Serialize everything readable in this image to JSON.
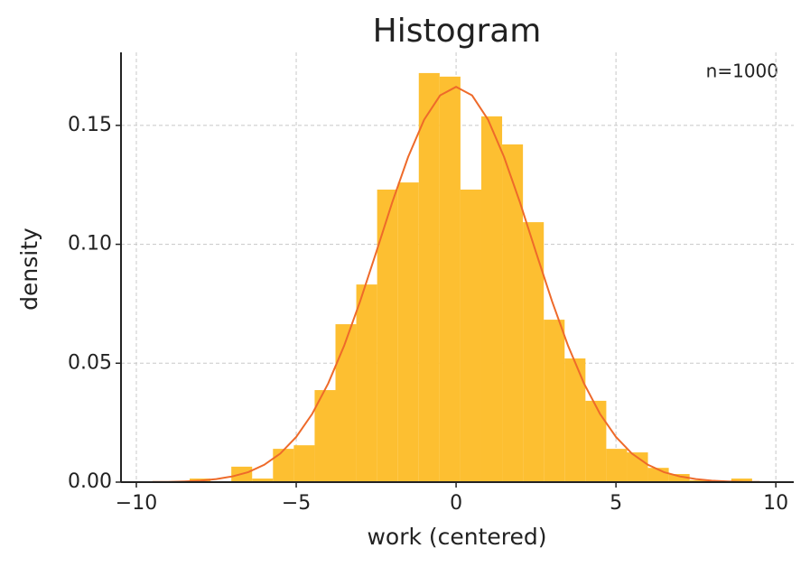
{
  "chart_data": {
    "type": "histogram",
    "title": "Histogram",
    "xlabel": "work (centered)",
    "ylabel": "density",
    "annotation": "n=1000",
    "bins": [
      -8.333,
      -7.6815,
      -7.03,
      -6.3785,
      -5.727,
      -5.0755,
      -4.424,
      -3.7725,
      -3.121,
      -2.4695,
      -1.818,
      -1.1665,
      -0.515,
      0.1365,
      0.788,
      1.4395,
      2.091,
      2.7425,
      3.394,
      4.0455,
      4.697,
      5.3485,
      6.0,
      6.6515,
      7.303,
      7.9545,
      8.606,
      9.2575
    ],
    "values": [
      0.0015,
      0,
      0.0065,
      0.0015,
      0.014,
      0.0155,
      0.0387,
      0.0664,
      0.0831,
      0.123,
      0.126,
      0.172,
      0.1705,
      0.123,
      0.1538,
      0.142,
      0.1093,
      0.0683,
      0.052,
      0.0342,
      0.014,
      0.0125,
      0.006,
      0.0034,
      0.0008,
      0,
      0.0015
    ],
    "color": "#fdbf31",
    "curve": {
      "color": "#ee6a2a",
      "x": [
        -9.5,
        -9,
        -8.5,
        -8,
        -7.5,
        -7,
        -6.5,
        -6,
        -5.5,
        -5,
        -4.5,
        -4,
        -3.5,
        -3,
        -2.5,
        -2,
        -1.5,
        -1,
        -0.5,
        0,
        0.5,
        1,
        1.5,
        2,
        2.5,
        3,
        3.5,
        4,
        4.5,
        5,
        5.5,
        6,
        6.5,
        7,
        7.5,
        8,
        8.5,
        9,
        9.5
      ],
      "values": [
        0.0001,
        0.0001,
        0.0003,
        0.0006,
        0.0013,
        0.0024,
        0.0042,
        0.0073,
        0.012,
        0.019,
        0.0287,
        0.0415,
        0.0574,
        0.0761,
        0.0966,
        0.1175,
        0.1367,
        0.1524,
        0.1626,
        0.1662,
        0.1626,
        0.1524,
        0.1367,
        0.1175,
        0.0966,
        0.0761,
        0.0574,
        0.0415,
        0.0287,
        0.019,
        0.012,
        0.0073,
        0.0042,
        0.0024,
        0.0013,
        0.0006,
        0.0003,
        0.0001,
        0.0001
      ]
    },
    "xlim": [
      -10.48,
      10.56
    ],
    "ylim": [
      0,
      0.1807
    ],
    "xticks": [
      {
        "value": -10,
        "label": "−10"
      },
      {
        "value": -5,
        "label": "−5"
      },
      0,
      5,
      10
    ],
    "yticks": [
      {
        "value": 0,
        "label": "0.00"
      },
      {
        "value": 0.05,
        "label": "0.05"
      },
      {
        "value": 0.1,
        "label": "0.10"
      },
      {
        "value": 0.15,
        "label": "0.15"
      }
    ],
    "grid": true
  }
}
